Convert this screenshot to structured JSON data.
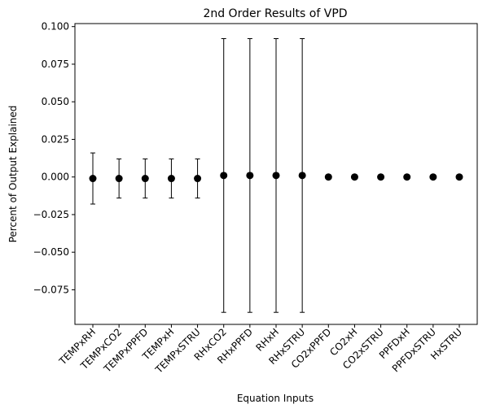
{
  "chart_data": {
    "type": "scatter",
    "title": "2nd Order Results of VPD",
    "xlabel": "Equation Inputs",
    "ylabel": "Percent of Output Explained",
    "ylim": [
      -0.098,
      0.102
    ],
    "yticks": [
      0.1,
      0.075,
      0.05,
      0.025,
      0.0,
      -0.025,
      -0.05,
      -0.075
    ],
    "ytick_labels": [
      "0.100",
      "0.075",
      "0.050",
      "0.025",
      "0.000",
      "−0.025",
      "−0.050",
      "−0.075"
    ],
    "grid": false,
    "marker_color": "#000000",
    "categories": [
      "TEMPxRH",
      "TEMPxCO2",
      "TEMPxPPFD",
      "TEMPxH",
      "TEMPxSTRU",
      "RHxCO2",
      "RHxPPFD",
      "RHxH",
      "RHxSTRU",
      "CO2xPPFD",
      "CO2xH",
      "CO2xSTRU",
      "PPFDxH",
      "PPFDxSTRU",
      "HxSTRU"
    ],
    "values": [
      -0.001,
      -0.001,
      -0.001,
      -0.001,
      -0.001,
      0.001,
      0.001,
      0.001,
      0.001,
      0.0,
      0.0,
      0.0,
      0.0,
      0.0,
      0.0
    ],
    "error": [
      0.017,
      0.013,
      0.013,
      0.013,
      0.013,
      0.091,
      0.091,
      0.091,
      0.091,
      0.0,
      0.0,
      0.0,
      0.0,
      0.0,
      0.0
    ]
  }
}
